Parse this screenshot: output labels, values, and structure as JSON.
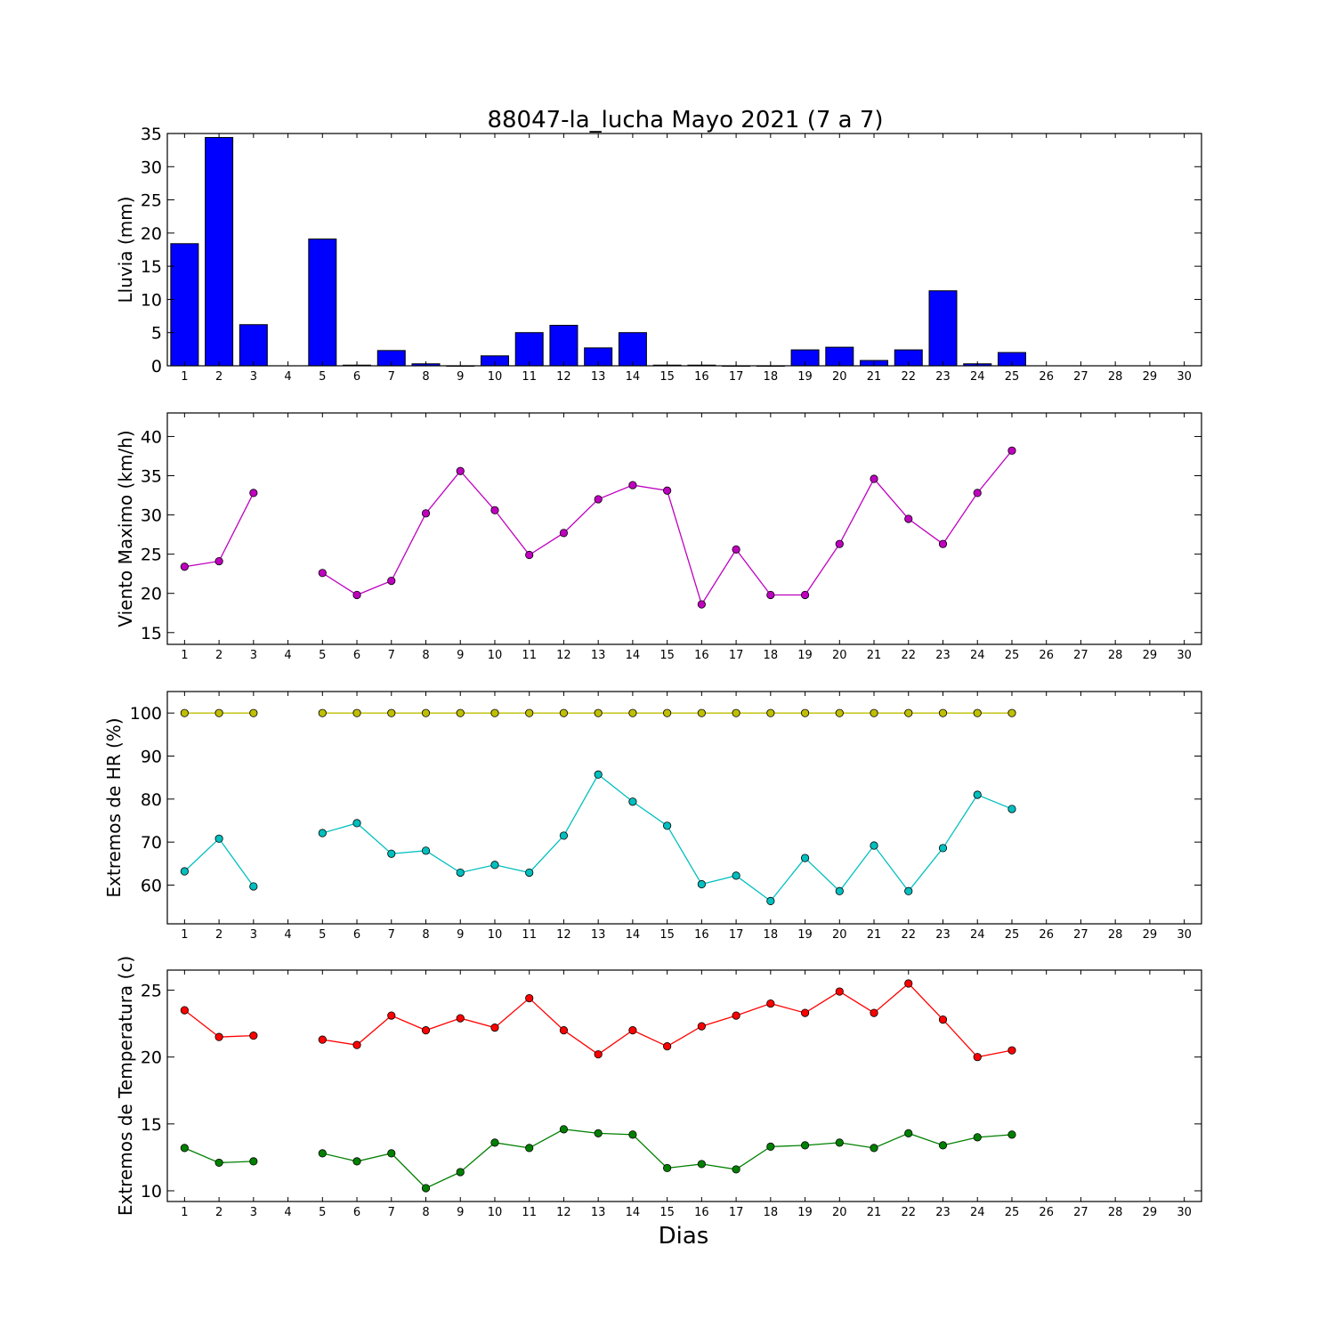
{
  "figure": {
    "title": "88047-la_lucha Mayo 2021  (7 a 7)",
    "xlabel": "Dias"
  },
  "chart_data": [
    {
      "type": "bar",
      "ylabel": "Lluvia (mm)",
      "xlim": [
        0.5,
        30.5
      ],
      "ylim": [
        0,
        35
      ],
      "yticks": [
        0,
        5,
        10,
        15,
        20,
        25,
        30,
        35
      ],
      "xticks": [
        1,
        2,
        3,
        4,
        5,
        6,
        7,
        8,
        9,
        10,
        11,
        12,
        13,
        14,
        15,
        16,
        17,
        18,
        19,
        20,
        21,
        22,
        23,
        24,
        25,
        26,
        27,
        28,
        29,
        30
      ],
      "grid": false,
      "color": "#0000ff",
      "x": [
        1,
        2,
        3,
        4,
        5,
        6,
        7,
        8,
        9,
        10,
        11,
        12,
        13,
        14,
        15,
        16,
        17,
        18,
        19,
        20,
        21,
        22,
        23,
        24,
        25
      ],
      "values": [
        18.4,
        34.4,
        6.2,
        null,
        19.1,
        0.1,
        2.3,
        0.3,
        0,
        1.5,
        5.0,
        6.1,
        2.7,
        5.0,
        0.1,
        0.1,
        0,
        0,
        2.4,
        2.8,
        0.8,
        2.4,
        11.3,
        0.3,
        2.0
      ]
    },
    {
      "type": "line",
      "ylabel": "Viento Maximo (km/h)",
      "xlim": [
        0.5,
        30.5
      ],
      "ylim": [
        13.5,
        43
      ],
      "yticks": [
        15,
        20,
        25,
        30,
        35,
        40
      ],
      "xticks": [
        1,
        2,
        3,
        4,
        5,
        6,
        7,
        8,
        9,
        10,
        11,
        12,
        13,
        14,
        15,
        16,
        17,
        18,
        19,
        20,
        21,
        22,
        23,
        24,
        25,
        26,
        27,
        28,
        29,
        30
      ],
      "grid": false,
      "series": [
        {
          "color": "#bf00bf",
          "x": [
            1,
            2,
            3,
            4,
            5,
            6,
            7,
            8,
            9,
            10,
            11,
            12,
            13,
            14,
            15,
            16,
            17,
            18,
            19,
            20,
            21,
            22,
            23,
            24,
            25
          ],
          "values": [
            23.4,
            24.1,
            32.8,
            null,
            22.6,
            19.8,
            21.6,
            30.2,
            35.6,
            30.6,
            24.9,
            27.7,
            32.0,
            33.8,
            33.1,
            18.6,
            25.6,
            19.8,
            19.8,
            26.3,
            34.6,
            29.5,
            26.3,
            32.8,
            38.2
          ]
        }
      ]
    },
    {
      "type": "line",
      "ylabel": "Extremos de HR (%)",
      "xlim": [
        0.5,
        30.5
      ],
      "ylim": [
        51,
        105
      ],
      "yticks": [
        60,
        70,
        80,
        90,
        100
      ],
      "xticks": [
        1,
        2,
        3,
        4,
        5,
        6,
        7,
        8,
        9,
        10,
        11,
        12,
        13,
        14,
        15,
        16,
        17,
        18,
        19,
        20,
        21,
        22,
        23,
        24,
        25,
        26,
        27,
        28,
        29,
        30
      ],
      "grid": false,
      "series": [
        {
          "color": "#bfbf00",
          "x": [
            1,
            2,
            3,
            4,
            5,
            6,
            7,
            8,
            9,
            10,
            11,
            12,
            13,
            14,
            15,
            16,
            17,
            18,
            19,
            20,
            21,
            22,
            23,
            24,
            25
          ],
          "values": [
            100,
            100,
            100,
            null,
            100,
            100,
            100,
            100,
            100,
            100,
            100,
            100,
            100,
            100,
            100,
            100,
            100,
            100,
            100,
            100,
            100,
            100,
            100,
            100,
            100
          ]
        },
        {
          "color": "#00bfbf",
          "x": [
            1,
            2,
            3,
            4,
            5,
            6,
            7,
            8,
            9,
            10,
            11,
            12,
            13,
            14,
            15,
            16,
            17,
            18,
            19,
            20,
            21,
            22,
            23,
            24,
            25
          ],
          "values": [
            63.2,
            70.8,
            59.7,
            null,
            72.1,
            74.4,
            67.3,
            68.0,
            62.9,
            64.7,
            62.9,
            71.5,
            85.7,
            79.4,
            73.8,
            60.2,
            62.2,
            56.3,
            66.3,
            58.6,
            69.2,
            58.6,
            68.6,
            81.0,
            77.7
          ]
        }
      ]
    },
    {
      "type": "line",
      "ylabel": "Extremos de Temperatura (c)",
      "xlim": [
        0.5,
        30.5
      ],
      "ylim": [
        9.2,
        26.5
      ],
      "yticks": [
        10,
        15,
        20,
        25
      ],
      "xticks": [
        1,
        2,
        3,
        4,
        5,
        6,
        7,
        8,
        9,
        10,
        11,
        12,
        13,
        14,
        15,
        16,
        17,
        18,
        19,
        20,
        21,
        22,
        23,
        24,
        25,
        26,
        27,
        28,
        29,
        30
      ],
      "grid": false,
      "series": [
        {
          "color": "#ff0000",
          "x": [
            1,
            2,
            3,
            4,
            5,
            6,
            7,
            8,
            9,
            10,
            11,
            12,
            13,
            14,
            15,
            16,
            17,
            18,
            19,
            20,
            21,
            22,
            23,
            24,
            25
          ],
          "values": [
            23.5,
            21.5,
            21.6,
            null,
            21.3,
            20.9,
            23.1,
            22.0,
            22.9,
            22.2,
            24.4,
            22.0,
            20.2,
            22.0,
            20.8,
            22.3,
            23.1,
            24.0,
            23.3,
            24.9,
            23.3,
            25.5,
            22.8,
            20.0,
            20.5
          ]
        },
        {
          "color": "#008000",
          "x": [
            1,
            2,
            3,
            4,
            5,
            6,
            7,
            8,
            9,
            10,
            11,
            12,
            13,
            14,
            15,
            16,
            17,
            18,
            19,
            20,
            21,
            22,
            23,
            24,
            25
          ],
          "values": [
            13.2,
            12.1,
            12.2,
            null,
            12.8,
            12.2,
            12.8,
            10.2,
            11.4,
            13.6,
            13.2,
            14.6,
            14.3,
            14.2,
            11.7,
            12.0,
            11.6,
            13.3,
            13.4,
            13.6,
            13.2,
            14.3,
            13.4,
            14.0,
            14.2
          ]
        }
      ]
    }
  ]
}
